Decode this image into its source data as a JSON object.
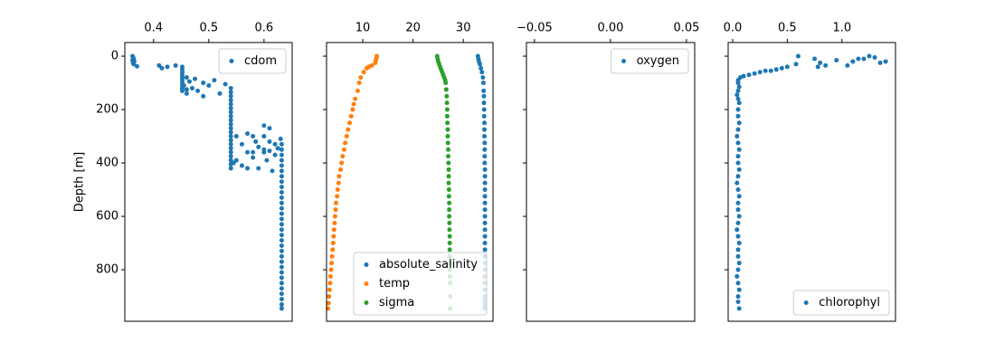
{
  "chart_data": [
    {
      "type": "scatter",
      "ylabel": "Depth [m]",
      "legend": "upper right",
      "xlim": [
        0.348,
        0.651
      ],
      "xticks": [
        0.4,
        0.5,
        0.6
      ],
      "ylim": [
        993,
        -51
      ],
      "yticks": [
        0,
        200,
        400,
        600,
        800
      ],
      "ytick_labels": true,
      "series": [
        {
          "name": "cdom",
          "color": "#1f77b4",
          "x": [
            0.362,
            0.363,
            0.364,
            0.362,
            0.365,
            0.363,
            0.364,
            0.37,
            0.41,
            0.415,
            0.425,
            0.44,
            0.452,
            0.452,
            0.452,
            0.452,
            0.452,
            0.452,
            0.452,
            0.452,
            0.452,
            0.452,
            0.46,
            0.465,
            0.475,
            0.47,
            0.49,
            0.455,
            0.46,
            0.48,
            0.5,
            0.51,
            0.49,
            0.52,
            0.53,
            0.46,
            0.54,
            0.54,
            0.54,
            0.54,
            0.54,
            0.54,
            0.54,
            0.54,
            0.54,
            0.54,
            0.54,
            0.54,
            0.54,
            0.54,
            0.54,
            0.54,
            0.54,
            0.54,
            0.54,
            0.54,
            0.54,
            0.55,
            0.56,
            0.57,
            0.58,
            0.6,
            0.61,
            0.59,
            0.6,
            0.61,
            0.62,
            0.63,
            0.57,
            0.56,
            0.58,
            0.59,
            0.6,
            0.605,
            0.615,
            0.62,
            0.55,
            0.58,
            0.545,
            0.57,
            0.6,
            0.585,
            0.61,
            0.625,
            0.632,
            0.632,
            0.632,
            0.632,
            0.632,
            0.632,
            0.632,
            0.632,
            0.632,
            0.632,
            0.632,
            0.632,
            0.632,
            0.632,
            0.632,
            0.632,
            0.632,
            0.632,
            0.632,
            0.632,
            0.632,
            0.632,
            0.632,
            0.632,
            0.632,
            0.632,
            0.632,
            0.632,
            0.632,
            0.632,
            0.632,
            0.632
          ],
          "values": [
            0,
            5,
            10,
            15,
            20,
            25,
            30,
            38,
            35,
            45,
            40,
            35,
            40,
            50,
            60,
            70,
            80,
            90,
            100,
            110,
            120,
            130,
            80,
            95,
            85,
            120,
            100,
            110,
            140,
            130,
            110,
            90,
            150,
            140,
            105,
            125,
            120,
            135,
            150,
            165,
            180,
            195,
            210,
            225,
            240,
            255,
            270,
            285,
            300,
            315,
            330,
            345,
            360,
            375,
            390,
            405,
            420,
            300,
            330,
            290,
            300,
            260,
            270,
            340,
            350,
            320,
            330,
            310,
            360,
            410,
            380,
            420,
            360,
            390,
            430,
            370,
            390,
            360,
            400,
            420,
            300,
            320,
            355,
            345,
            330,
            350,
            370,
            390,
            410,
            430,
            450,
            470,
            490,
            510,
            530,
            550,
            570,
            590,
            610,
            630,
            650,
            670,
            690,
            710,
            730,
            750,
            770,
            790,
            810,
            830,
            850,
            870,
            890,
            910,
            930,
            945
          ]
        }
      ]
    },
    {
      "type": "scatter",
      "legend": "lower right",
      "xlim": [
        2.8,
        35.9
      ],
      "xticks": [
        10,
        20,
        30
      ],
      "ylim": [
        993,
        -51
      ],
      "yticks": [
        0,
        200,
        400,
        600,
        800
      ],
      "ytick_labels": false,
      "series": [
        {
          "name": "absolute_salinity",
          "color": "#1f77b4",
          "x": [
            32.9,
            33.0,
            33.1,
            33.3,
            33.5,
            33.7,
            33.9,
            34.0,
            34.05,
            34.1,
            34.1,
            34.15,
            34.15,
            34.2,
            34.2,
            34.2,
            34.25,
            34.25,
            34.25,
            34.25,
            34.3,
            34.3,
            34.3,
            34.3,
            34.3,
            34.3,
            34.3,
            34.3,
            34.3,
            34.3,
            34.3,
            34.3,
            34.3,
            34.3,
            34.3,
            34.3,
            34.3,
            34.3,
            34.3,
            34.3,
            34.3,
            34.3,
            34.3,
            34.3
          ],
          "values": [
            0,
            10,
            20,
            30,
            45,
            60,
            80,
            100,
            130,
            150,
            175,
            200,
            225,
            250,
            275,
            300,
            325,
            350,
            375,
            400,
            425,
            450,
            475,
            500,
            525,
            550,
            575,
            600,
            625,
            650,
            675,
            700,
            725,
            750,
            775,
            800,
            825,
            850,
            875,
            900,
            915,
            925,
            935,
            945
          ]
        },
        {
          "name": "temp",
          "color": "#ff7f0e",
          "x": [
            12.8,
            12.7,
            12.6,
            12.5,
            11.8,
            11.2,
            10.8,
            10.2,
            9.6,
            9.3,
            9.0,
            8.5,
            8.2,
            8.0,
            7.7,
            7.4,
            7.1,
            6.8,
            6.5,
            6.3,
            6.0,
            5.8,
            5.6,
            5.3,
            5.2,
            5.0,
            4.9,
            4.7,
            4.6,
            4.5,
            4.4,
            4.3,
            4.2,
            4.1,
            4.0,
            3.9,
            3.8,
            3.7,
            3.6,
            3.5,
            3.4,
            3.3,
            3.2,
            3.1
          ],
          "values": [
            0,
            8,
            15,
            25,
            35,
            40,
            45,
            60,
            80,
            100,
            130,
            160,
            180,
            200,
            225,
            250,
            275,
            300,
            325,
            350,
            375,
            400,
            425,
            450,
            475,
            500,
            525,
            550,
            575,
            600,
            625,
            650,
            675,
            700,
            725,
            750,
            775,
            800,
            825,
            850,
            875,
            900,
            925,
            945
          ]
        },
        {
          "name": "sigma",
          "color": "#2ca02c",
          "x": [
            24.8,
            24.9,
            25.0,
            25.2,
            25.4,
            25.6,
            25.8,
            26.0,
            26.2,
            26.4,
            26.5,
            26.6,
            26.7,
            26.75,
            26.8,
            26.8,
            26.85,
            26.9,
            26.9,
            26.95,
            27.0,
            27.0,
            27.05,
            27.1,
            27.1,
            27.1,
            27.15,
            27.15,
            27.2,
            27.2,
            27.2,
            27.25,
            27.25,
            27.3,
            27.3,
            27.3,
            27.3,
            27.35,
            27.35,
            27.35,
            27.4,
            27.4,
            27.4
          ],
          "values": [
            0,
            10,
            20,
            30,
            40,
            50,
            60,
            70,
            80,
            90,
            100,
            125,
            150,
            175,
            200,
            225,
            250,
            275,
            300,
            325,
            350,
            375,
            400,
            425,
            450,
            475,
            500,
            525,
            550,
            575,
            600,
            625,
            650,
            675,
            700,
            725,
            750,
            775,
            800,
            825,
            850,
            900,
            945
          ]
        }
      ]
    },
    {
      "type": "scatter",
      "legend": "upper right",
      "xlim": [
        -0.0553,
        0.0554
      ],
      "xticks": [
        {
          "value": -0.05,
          "label": "−0.05"
        },
        {
          "value": 0,
          "label": "0.00"
        },
        {
          "value": 0.05,
          "label": "0.05"
        }
      ],
      "ylim": [
        993,
        -51
      ],
      "yticks": [
        0,
        200,
        400,
        600,
        800
      ],
      "ytick_labels": false,
      "series": [
        {
          "name": "oxygen",
          "color": "#1f77b4",
          "x": [],
          "values": []
        }
      ]
    },
    {
      "type": "scatter",
      "legend": "lower right",
      "xlim": [
        -0.041,
        1.49
      ],
      "xticks": [
        {
          "value": 0,
          "label": "0.0"
        },
        {
          "value": 0.5,
          "label": "0.5"
        },
        {
          "value": 1,
          "label": "1.0"
        }
      ],
      "ylim": [
        993,
        -51
      ],
      "yticks": [
        0,
        200,
        400,
        600,
        800
      ],
      "ytick_labels": false,
      "series": [
        {
          "name": "chlorophyl",
          "color": "#1f77b4",
          "x": [
            1.2,
            1.25,
            1.3,
            1.35,
            1.4,
            1.15,
            1.1,
            1.05,
            0.95,
            0.8,
            0.75,
            0.85,
            0.78,
            0.6,
            0.58,
            0.5,
            0.45,
            0.4,
            0.35,
            0.3,
            0.25,
            0.2,
            0.15,
            0.1,
            0.07,
            0.05,
            0.05,
            0.06,
            0.05,
            0.04,
            0.05,
            0.06,
            0.05,
            0.05,
            0.06,
            0.05,
            0.04,
            0.05,
            0.06,
            0.05,
            0.05,
            0.06,
            0.05,
            0.04,
            0.05,
            0.06,
            0.05,
            0.05,
            0.06,
            0.05,
            0.04,
            0.05,
            0.06,
            0.05,
            0.05,
            0.06,
            0.05,
            0.04,
            0.05,
            0.06,
            0.05,
            0.05,
            0.06
          ],
          "values": [
            10,
            0,
            5,
            25,
            20,
            10,
            20,
            35,
            15,
            25,
            10,
            35,
            40,
            0,
            30,
            40,
            45,
            50,
            55,
            55,
            60,
            65,
            70,
            75,
            80,
            90,
            100,
            115,
            130,
            145,
            160,
            175,
            200,
            225,
            250,
            275,
            300,
            325,
            350,
            375,
            400,
            425,
            450,
            475,
            500,
            525,
            550,
            575,
            600,
            625,
            650,
            675,
            700,
            725,
            750,
            775,
            800,
            825,
            850,
            875,
            900,
            920,
            945
          ]
        }
      ]
    }
  ]
}
